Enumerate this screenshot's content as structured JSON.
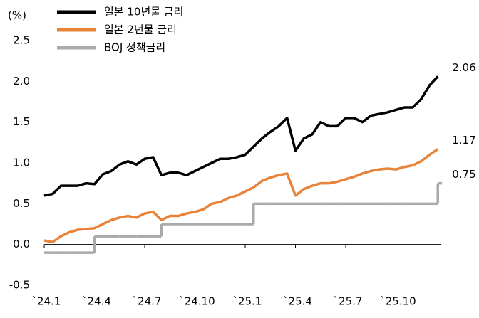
{
  "chart_data": {
    "type": "line",
    "ylabel": "(%)",
    "categories": [
      "`24.1",
      null,
      null,
      null,
      null,
      null,
      "`24.4",
      null,
      null,
      null,
      null,
      null,
      "`24.7",
      null,
      null,
      null,
      null,
      null,
      "`24.10",
      null,
      null,
      null,
      null,
      null,
      "`25.1",
      null,
      null,
      null,
      null,
      null,
      "`25.4",
      null,
      null,
      null,
      null,
      null,
      "`25.7",
      null,
      null,
      null,
      null,
      null,
      "`25.10",
      null,
      null,
      null,
      null,
      null
    ],
    "series": [
      {
        "name": "일본 10년물 금리",
        "color": "#000000",
        "values": [
          0.6,
          0.62,
          0.72,
          0.72,
          0.72,
          0.75,
          0.74,
          0.86,
          0.9,
          0.98,
          1.02,
          0.98,
          1.05,
          1.07,
          0.85,
          0.88,
          0.88,
          0.85,
          0.9,
          0.95,
          1.0,
          1.05,
          1.05,
          1.07,
          1.1,
          1.2,
          1.3,
          1.38,
          1.45,
          1.55,
          1.15,
          1.3,
          1.35,
          1.5,
          1.45,
          1.45,
          1.55,
          1.55,
          1.5,
          1.58,
          1.6,
          1.62,
          1.65,
          1.68,
          1.68,
          1.78,
          1.95,
          2.06
        ]
      },
      {
        "name": "일본 2년물 금리",
        "color": "#e8843a",
        "values": [
          0.05,
          0.03,
          0.1,
          0.15,
          0.18,
          0.19,
          0.2,
          0.25,
          0.3,
          0.33,
          0.35,
          0.33,
          0.38,
          0.4,
          0.3,
          0.35,
          0.35,
          0.38,
          0.4,
          0.43,
          0.5,
          0.52,
          0.57,
          0.6,
          0.65,
          0.7,
          0.78,
          0.82,
          0.85,
          0.87,
          0.6,
          0.68,
          0.72,
          0.75,
          0.75,
          0.77,
          0.8,
          0.83,
          0.87,
          0.9,
          0.92,
          0.93,
          0.92,
          0.95,
          0.97,
          1.02,
          1.1,
          1.17
        ]
      },
      {
        "name": "BOJ 정책금리",
        "color": "#aaaaaa",
        "step": "after",
        "values": [
          -0.1,
          -0.1,
          -0.1,
          -0.1,
          -0.1,
          -0.1,
          0.1,
          0.1,
          0.1,
          0.1,
          0.1,
          0.1,
          0.1,
          0.1,
          0.25,
          0.25,
          0.25,
          0.25,
          0.25,
          0.25,
          0.25,
          0.25,
          0.25,
          0.25,
          0.25,
          0.5,
          0.5,
          0.5,
          0.5,
          0.5,
          0.5,
          0.5,
          0.5,
          0.5,
          0.5,
          0.5,
          0.5,
          0.5,
          0.5,
          0.5,
          0.5,
          0.5,
          0.5,
          0.5,
          0.5,
          0.5,
          0.5,
          0.75
        ]
      }
    ],
    "ylim": [
      -0.5,
      2.5
    ],
    "yticks": [
      2.5,
      {
        "value": 2,
        "label": "2.0"
      },
      1.5,
      {
        "value": 1,
        "label": "1.0"
      },
      0.5,
      {
        "value": 0,
        "label": "0.0"
      },
      -0.5
    ],
    "grid": false,
    "legend": "top-left"
  }
}
